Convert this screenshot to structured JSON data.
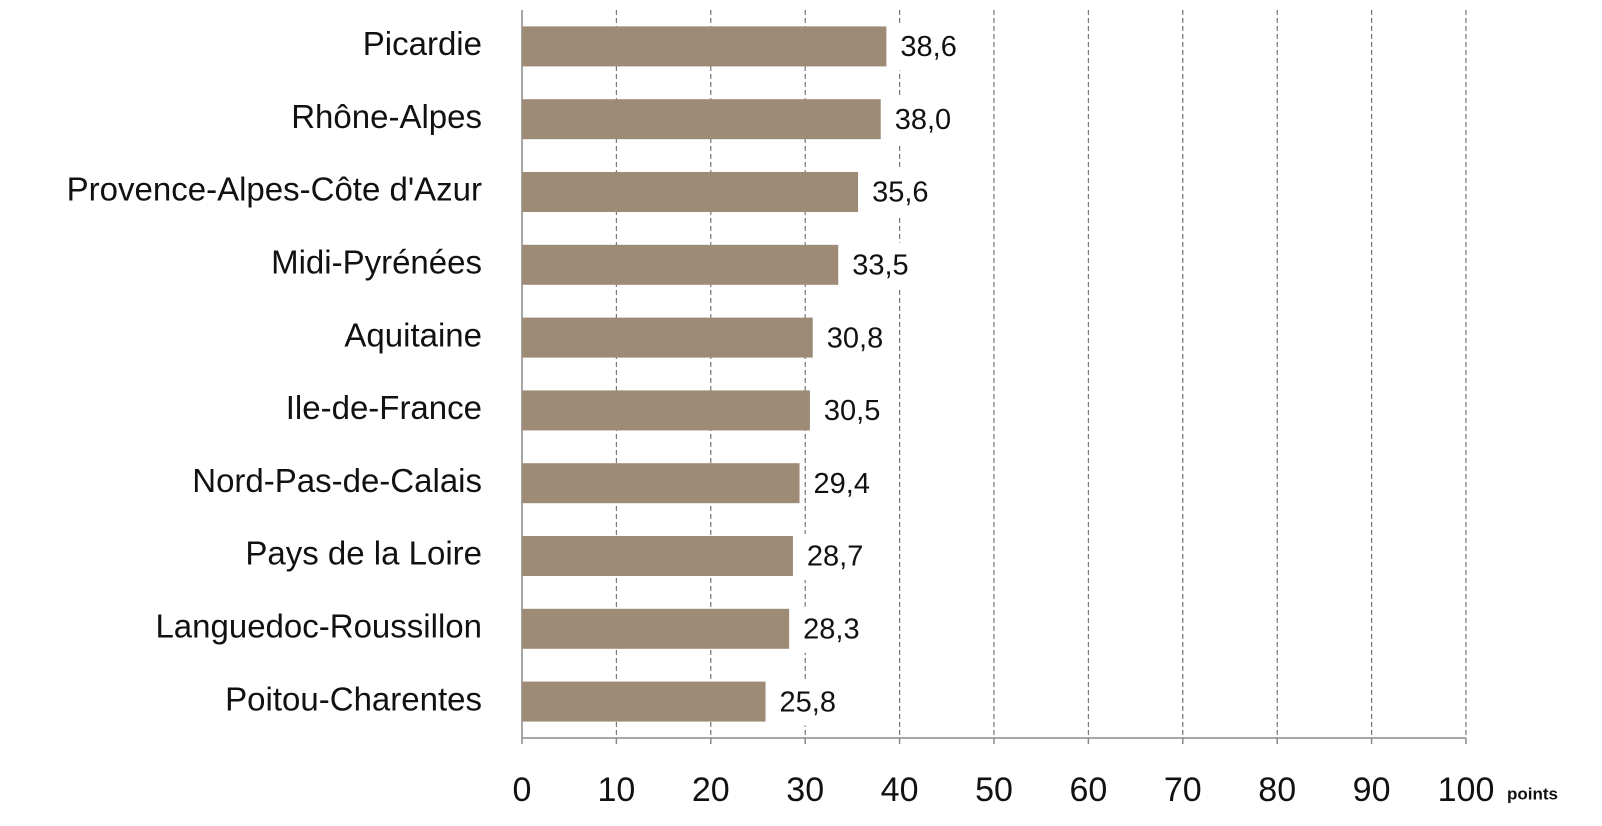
{
  "chart_data": {
    "type": "bar",
    "orientation": "horizontal",
    "categories": [
      "Picardie",
      "Rhône-Alpes",
      "Provence-Alpes-Côte d'Azur",
      "Midi-Pyrénées",
      "Aquitaine",
      "Ile-de-France",
      "Nord-Pas-de-Calais",
      "Pays de la Loire",
      "Languedoc-Roussillon",
      "Poitou-Charentes"
    ],
    "values": [
      38.6,
      38.0,
      35.6,
      33.5,
      30.8,
      30.5,
      29.4,
      28.7,
      28.3,
      25.8
    ],
    "value_labels": [
      "38,6",
      "38,0",
      "35,6",
      "33,5",
      "30,8",
      "30,5",
      "29,4",
      "28,7",
      "28,3",
      "25,8"
    ],
    "color": "#9e8b76",
    "xlim": [
      0,
      100
    ],
    "xticks": [
      0,
      10,
      20,
      30,
      40,
      50,
      60,
      70,
      80,
      90,
      100
    ],
    "x_label": "points",
    "grid": true
  }
}
